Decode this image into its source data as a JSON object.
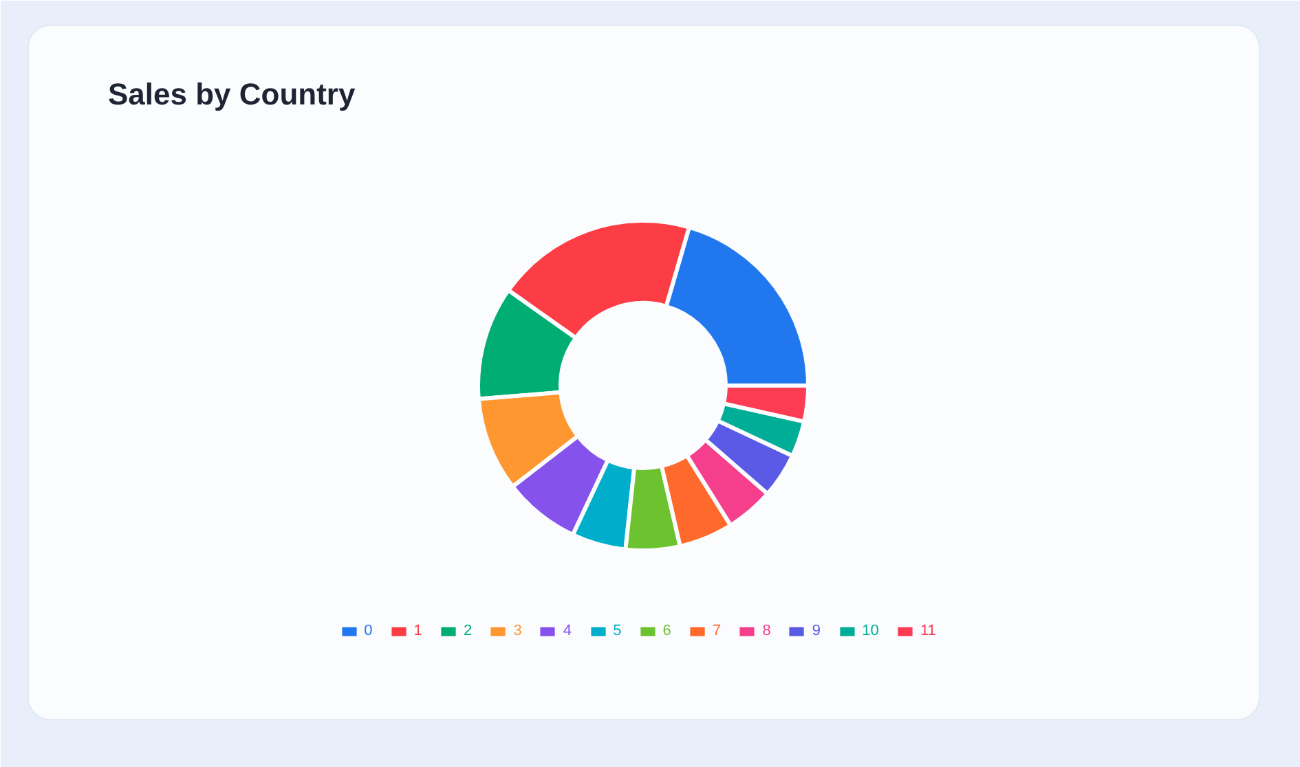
{
  "chart_data": {
    "type": "donut",
    "title": "Sales by Country",
    "categories": [
      "0",
      "1",
      "2",
      "3",
      "4",
      "5",
      "6",
      "7",
      "8",
      "9",
      "10",
      "11"
    ],
    "values": [
      20.5,
      19.7,
      11.1,
      9.2,
      7.5,
      5.3,
      5.3,
      5.3,
      4.7,
      4.4,
      3.5,
      3.5
    ],
    "colors": [
      "#2178ee",
      "#fd3d45",
      "#00ae74",
      "#ff9731",
      "#8552ec",
      "#00aecb",
      "#6cc22f",
      "#ff6a2c",
      "#f53f8d",
      "#5a5ae6",
      "#00ae97",
      "#fd3b53"
    ],
    "legend": "bottom"
  }
}
